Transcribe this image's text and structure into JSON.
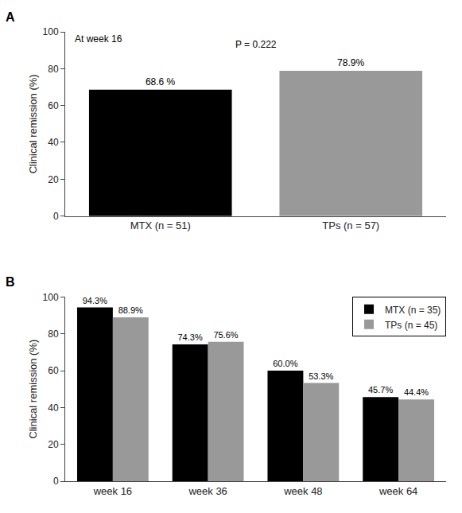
{
  "chart_data": [
    {
      "type": "bar",
      "title": "A",
      "categories": [
        "MTX (n = 51)",
        "TPs (n = 57)"
      ],
      "values": [
        68.6,
        78.9
      ],
      "value_labels": [
        "68.6 %",
        "78.9%"
      ],
      "colors": [
        "#000000",
        "#999999"
      ],
      "ylabel": "Clinical remission (%)",
      "ylim": [
        0,
        100
      ],
      "yticks": [
        0,
        20,
        40,
        60,
        80,
        100
      ],
      "annotations": [
        "P = 0.222",
        "At week 16"
      ],
      "grid": false,
      "data_labels": true
    },
    {
      "type": "bar",
      "title": "B",
      "categories": [
        "week 16",
        "week 36",
        "week 48",
        "week 64"
      ],
      "series": [
        {
          "name": "MTX (n = 35)",
          "color": "#000000",
          "values": [
            94.3,
            74.3,
            60.0,
            45.7
          ],
          "value_labels": [
            "94.3%",
            "74.3%",
            "60.0%",
            "45.7%"
          ]
        },
        {
          "name": "TPs (n = 45)",
          "color": "#999999",
          "values": [
            88.9,
            75.6,
            53.3,
            44.4
          ],
          "value_labels": [
            "88.9%",
            "75.6%",
            "53.3%",
            "44.4%"
          ]
        }
      ],
      "ylabel": "Clinical remission (%)",
      "ylim": [
        0,
        100
      ],
      "yticks": [
        0,
        20,
        40,
        60,
        80,
        100
      ],
      "legend": "upper right",
      "grid": false,
      "data_labels": true
    }
  ]
}
